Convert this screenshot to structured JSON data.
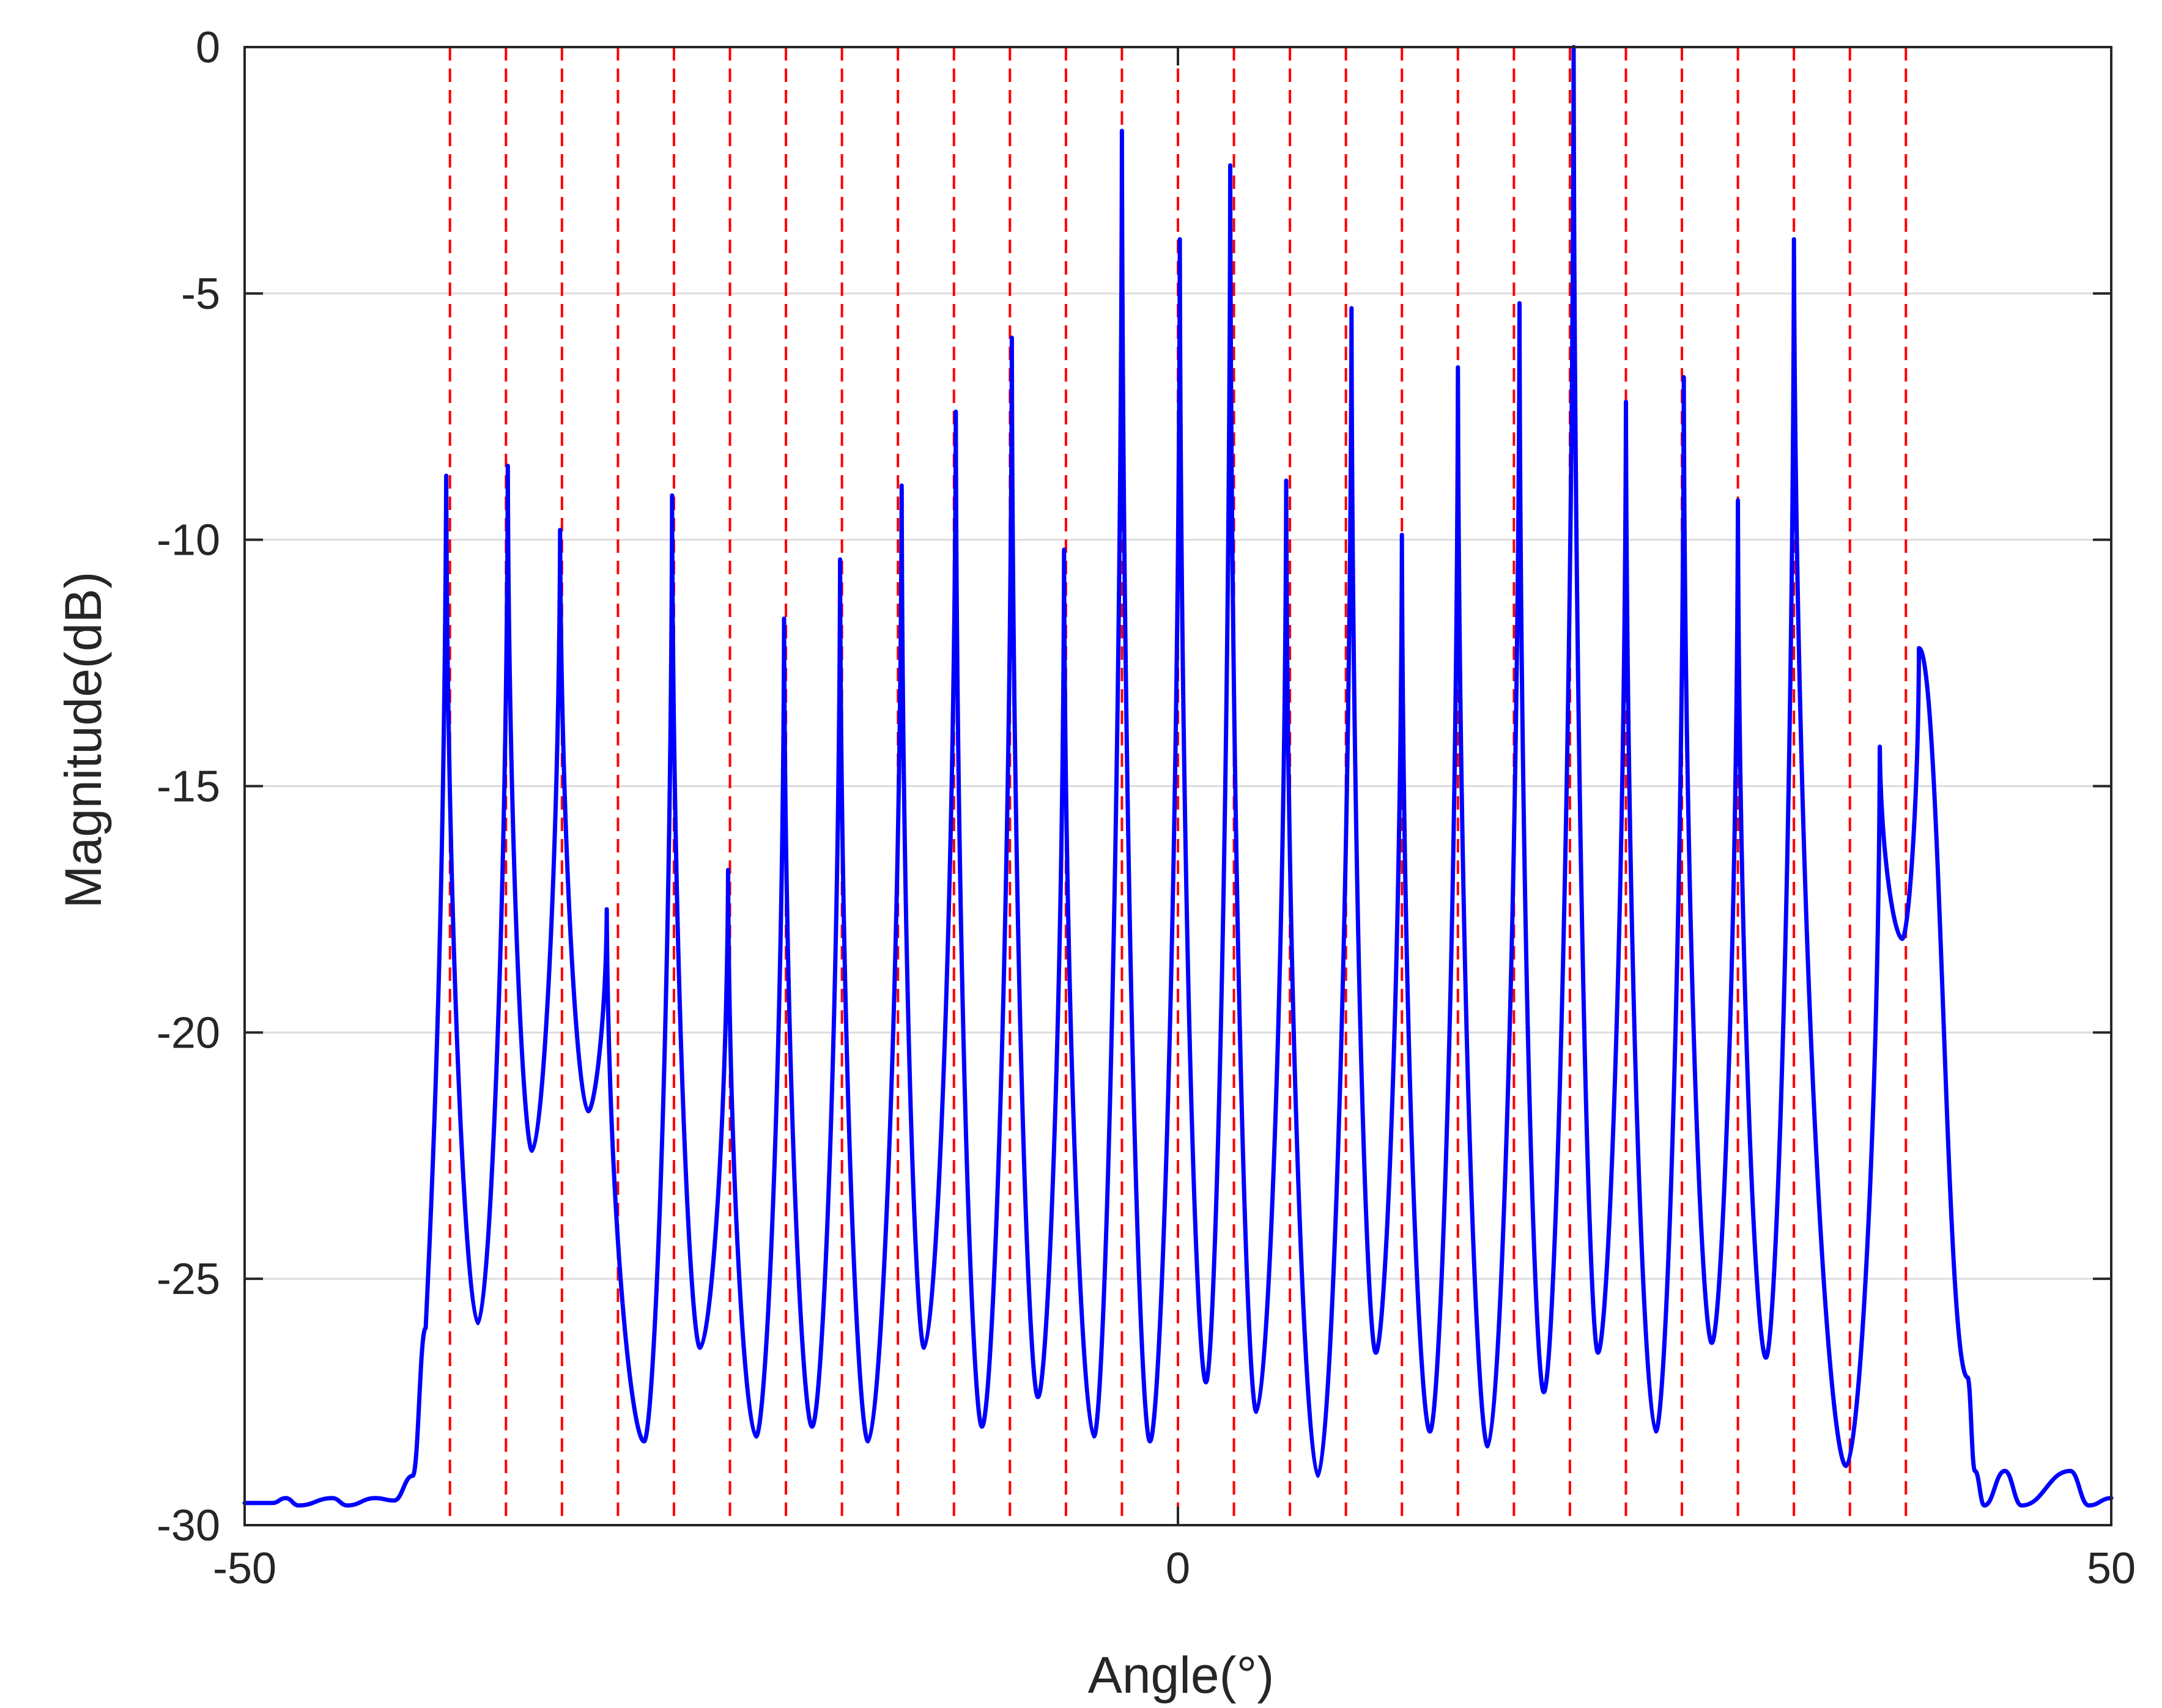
{
  "chart_data": {
    "type": "line",
    "xlabel": "Angle(°)",
    "ylabel": "Magnitude(dB)",
    "xlim": [
      -50,
      50
    ],
    "ylim": [
      -30,
      0
    ],
    "x_ticks": [
      -50,
      0,
      50
    ],
    "x_tick_labels": [
      "-50",
      "0",
      "50"
    ],
    "y_ticks": [
      0,
      -5,
      -10,
      -15,
      -20,
      -25,
      -30
    ],
    "y_tick_labels": [
      "0",
      "-5",
      "-10",
      "-15",
      "-20",
      "-25",
      "-30"
    ],
    "grid": "horizontal",
    "colors": {
      "spectrum": "#0000ff",
      "markers": "#ff0000",
      "grid": "#dcdcdc",
      "axis": "#262626"
    },
    "true_angles": [
      -39,
      -36,
      -33,
      -30,
      -27,
      -24,
      -21,
      -18,
      -15,
      -12,
      -9,
      -6,
      -3,
      0,
      3,
      6,
      9,
      12,
      15,
      18,
      21,
      24,
      27,
      30,
      33,
      36,
      39
    ],
    "peaks": [
      {
        "x": -39.2,
        "y": -8.7
      },
      {
        "x": -35.9,
        "y": -8.5
      },
      {
        "x": -33.1,
        "y": -9.8
      },
      {
        "x": -30.6,
        "y": -17.5
      },
      {
        "x": -27.1,
        "y": -9.1
      },
      {
        "x": -24.1,
        "y": -16.7
      },
      {
        "x": -21.1,
        "y": -11.6
      },
      {
        "x": -18.1,
        "y": -10.4
      },
      {
        "x": -14.8,
        "y": -8.9
      },
      {
        "x": -11.9,
        "y": -7.4
      },
      {
        "x": -8.9,
        "y": -5.9
      },
      {
        "x": -6.1,
        "y": -10.2
      },
      {
        "x": -3.0,
        "y": -1.7
      },
      {
        "x": 0.1,
        "y": -3.9
      },
      {
        "x": 2.8,
        "y": -2.4
      },
      {
        "x": 5.8,
        "y": -8.8
      },
      {
        "x": 9.3,
        "y": -5.3
      },
      {
        "x": 12.0,
        "y": -9.9
      },
      {
        "x": 15.0,
        "y": -6.5
      },
      {
        "x": 18.3,
        "y": -5.2
      },
      {
        "x": 21.2,
        "y": 0.0
      },
      {
        "x": 24.0,
        "y": -7.2
      },
      {
        "x": 27.1,
        "y": -6.7
      },
      {
        "x": 30.0,
        "y": -9.2
      },
      {
        "x": 33.0,
        "y": -3.9
      },
      {
        "x": 37.6,
        "y": -14.2
      },
      {
        "x": 39.7,
        "y": -12.2
      }
    ],
    "valleys": [
      {
        "x": -37.5,
        "y": -25.9
      },
      {
        "x": -34.6,
        "y": -22.4
      },
      {
        "x": -31.6,
        "y": -21.6
      },
      {
        "x": -28.6,
        "y": -28.3
      },
      {
        "x": -25.6,
        "y": -26.4
      },
      {
        "x": -22.6,
        "y": -28.2
      },
      {
        "x": -19.6,
        "y": -28.0
      },
      {
        "x": -16.6,
        "y": -28.3
      },
      {
        "x": -13.6,
        "y": -26.4
      },
      {
        "x": -10.5,
        "y": -28.0
      },
      {
        "x": -7.5,
        "y": -27.4
      },
      {
        "x": -4.5,
        "y": -28.2
      },
      {
        "x": -1.5,
        "y": -28.3
      },
      {
        "x": 1.5,
        "y": -27.1
      },
      {
        "x": 4.2,
        "y": -27.7
      },
      {
        "x": 7.5,
        "y": -29.0
      },
      {
        "x": 10.6,
        "y": -26.5
      },
      {
        "x": 13.5,
        "y": -28.1
      },
      {
        "x": 16.6,
        "y": -28.4
      },
      {
        "x": 19.6,
        "y": -27.3
      },
      {
        "x": 22.5,
        "y": -26.5
      },
      {
        "x": 25.6,
        "y": -28.1
      },
      {
        "x": 28.6,
        "y": -26.3
      },
      {
        "x": 31.5,
        "y": -26.6
      },
      {
        "x": 35.8,
        "y": -28.8
      },
      {
        "x": 38.8,
        "y": -18.1
      }
    ],
    "edges": [
      {
        "x": -50.0,
        "y": -29.55
      },
      {
        "x": -48.5,
        "y": -29.55
      },
      {
        "x": -47.8,
        "y": -29.45
      },
      {
        "x": -47.1,
        "y": -29.6
      },
      {
        "x": -45.3,
        "y": -29.45
      },
      {
        "x": -44.5,
        "y": -29.6
      },
      {
        "x": -43.0,
        "y": -29.45
      },
      {
        "x": -42.0,
        "y": -29.5
      },
      {
        "x": -41.0,
        "y": -29.0
      },
      {
        "x": -40.3,
        "y": -26.0
      },
      {
        "x": 42.3,
        "y": -27.0
      },
      {
        "x": 42.7,
        "y": -28.9
      },
      {
        "x": 43.2,
        "y": -29.6
      },
      {
        "x": 44.3,
        "y": -28.9
      },
      {
        "x": 45.2,
        "y": -29.6
      },
      {
        "x": 47.8,
        "y": -28.9
      },
      {
        "x": 48.8,
        "y": -29.6
      },
      {
        "x": 50.0,
        "y": -29.45
      }
    ]
  }
}
